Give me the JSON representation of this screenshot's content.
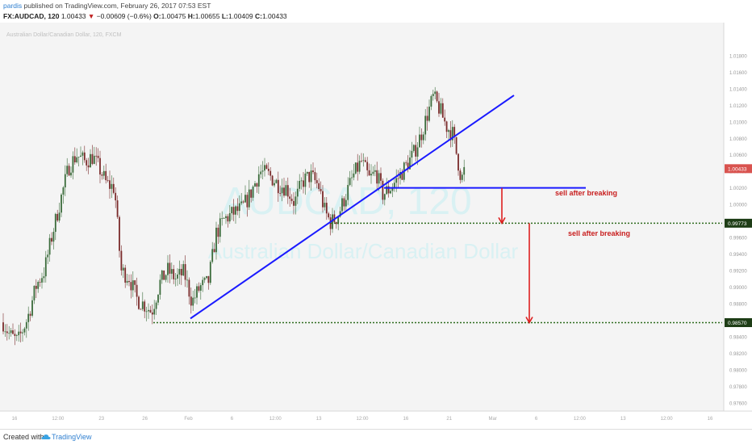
{
  "header": {
    "user": "pardis",
    "published": "published on TradingView.com, February 26, 2017 07:53 EST",
    "symbol": "FX:AUDCAD, 120",
    "last": "1.00433",
    "change": "−0.00609 (−0.6%)",
    "o_label": "O:",
    "o": "1.00475",
    "h_label": "H:",
    "h": "1.00655",
    "l_label": "L:",
    "l": "1.00409",
    "c_label": "C:",
    "c": "1.00433"
  },
  "footer": {
    "created": "Created with",
    "brand": "TradingView"
  },
  "colors": {
    "up": "#3a6b3a",
    "down": "#7a2a2a",
    "trendline": "#1a1aff",
    "arrow": "#dd1f1f",
    "level": "#2e6b1f",
    "price_tag": "#d9534f"
  },
  "chart_data": {
    "type": "candlestick",
    "watermark_symbol": "AUDCAD, 120",
    "watermark_name": "Australian Dollar/Canadian Dollar",
    "subtitle": "Australian Dollar/Canadian Dollar, 120, FXCM",
    "ylim": [
      0.975,
      1.022
    ],
    "x_ticks": [
      "16",
      "12:00",
      "23",
      "26",
      "Feb",
      "6",
      "12:00",
      "13",
      "12:00",
      "16",
      "21",
      "Mar",
      "6",
      "12:00",
      "13",
      "12:00",
      "16"
    ],
    "y_ticks": [
      "1.01800",
      "1.01600",
      "1.01400",
      "1.01200",
      "1.01000",
      "1.00800",
      "1.00600",
      "1.00400",
      "1.00200",
      "1.00000",
      "0.99800",
      "0.99600",
      "0.99400",
      "0.99200",
      "0.99000",
      "0.98800",
      "0.98600",
      "0.98400",
      "0.98200",
      "0.98000",
      "0.97800",
      "0.97600"
    ],
    "price_path": [
      [
        0,
        0.9865
      ],
      [
        12,
        0.9842
      ],
      [
        22,
        0.9834
      ],
      [
        34,
        0.9862
      ],
      [
        45,
        0.9902
      ],
      [
        55,
        0.992
      ],
      [
        65,
        0.9965
      ],
      [
        75,
        1.0005
      ],
      [
        85,
        1.0045
      ],
      [
        95,
        1.006
      ],
      [
        105,
        1.0052
      ],
      [
        115,
        1.0058
      ],
      [
        125,
        1.004
      ],
      [
        132,
        1.0025
      ],
      [
        142,
        1.002
      ],
      [
        150,
        0.992
      ],
      [
        160,
        0.9912
      ],
      [
        170,
        0.9885
      ],
      [
        180,
        0.9878
      ],
      [
        188,
        0.987
      ],
      [
        198,
        0.9905
      ],
      [
        208,
        0.992
      ],
      [
        218,
        0.991
      ],
      [
        228,
        0.9918
      ],
      [
        238,
        0.9882
      ],
      [
        248,
        0.99
      ],
      [
        258,
        0.9905
      ],
      [
        268,
        0.9965
      ],
      [
        278,
        0.9982
      ],
      [
        290,
        0.999
      ],
      [
        300,
        0.9995
      ],
      [
        310,
        1.0012
      ],
      [
        322,
        1.004
      ],
      [
        334,
        1.0035
      ],
      [
        344,
        1.0025
      ],
      [
        355,
        1.002
      ],
      [
        365,
        1.0002
      ],
      [
        375,
        1.0028
      ],
      [
        385,
        1.0035
      ],
      [
        395,
        1.0022
      ],
      [
        403,
        0.999
      ],
      [
        410,
        0.9978
      ],
      [
        418,
        0.9985
      ],
      [
        428,
        1.001
      ],
      [
        438,
        1.0035
      ],
      [
        448,
        1.0052
      ],
      [
        458,
        1.003
      ],
      [
        466,
        1.004
      ],
      [
        474,
        1.0012
      ],
      [
        482,
        1.0018
      ],
      [
        492,
        1.003
      ],
      [
        502,
        1.0045
      ],
      [
        512,
        1.006
      ],
      [
        522,
        1.0085
      ],
      [
        530,
        1.011
      ],
      [
        537,
        1.013
      ],
      [
        545,
        1.0115
      ],
      [
        553,
        1.0095
      ],
      [
        561,
        1.0085
      ],
      [
        567,
        1.0055
      ],
      [
        572,
        1.003
      ],
      [
        576,
        1.0043
      ]
    ],
    "horizontal_levels": [
      {
        "price": 1.002,
        "from_x": 476,
        "to_x": 726,
        "style": "solid"
      },
      {
        "price": 0.99773,
        "from_x": 410,
        "to_x": 895,
        "style": "dotted",
        "label": "0.99773"
      },
      {
        "price": 0.9857,
        "from_x": 190,
        "to_x": 895,
        "style": "dotted",
        "label": "0.98570"
      }
    ],
    "trendline": {
      "from": [
        236,
        0.9862
      ],
      "to": [
        637,
        1.0132
      ]
    },
    "arrows": [
      {
        "x": 622,
        "from": 1.002,
        "to": 0.99773
      },
      {
        "x": 656,
        "from": 0.99773,
        "to": 0.9857
      }
    ],
    "annotations": [
      {
        "text": "sell after breaking",
        "x": 688,
        "price": 1.0011
      },
      {
        "text": "sell after breaking",
        "x": 704,
        "price": 0.9962
      }
    ],
    "current_price_label": "1.00433",
    "current_price": 1.00433
  }
}
